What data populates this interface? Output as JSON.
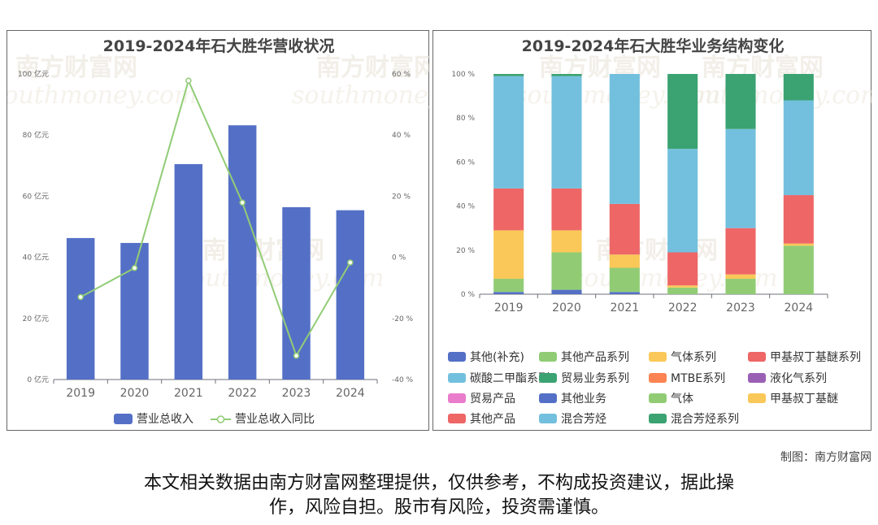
{
  "chart_data": [
    {
      "type": "bar+line",
      "title": "2019-2024年石大胜华营收状况",
      "categories": [
        "2019",
        "2020",
        "2021",
        "2022",
        "2023",
        "2024"
      ],
      "y_left_ticks": [
        "0 亿元",
        "20 亿元",
        "40 亿元",
        "60 亿元",
        "80 亿元",
        "100 亿元"
      ],
      "y_left_range": [
        0,
        100
      ],
      "y_right_ticks": [
        "-40 %",
        "-20 %",
        "0 %",
        "20 %",
        "40 %",
        "60 %"
      ],
      "y_right_range": [
        -40,
        60
      ],
      "series": [
        {
          "name": "营业总收入",
          "type": "bar",
          "axis": "left",
          "color": "#5470c6",
          "values": [
            46.3,
            44.7,
            70.5,
            83.2,
            56.4,
            55.4
          ]
        },
        {
          "name": "营业总收入同比",
          "type": "line",
          "axis": "right",
          "color": "#91cc75",
          "values": [
            -13,
            -3.5,
            57.8,
            17.9,
            -32.2,
            -1.7
          ]
        }
      ],
      "legend_position": "bottom",
      "grid": false
    },
    {
      "type": "stacked-bar-percent",
      "title": "2019-2024年石大胜华业务结构变化",
      "categories": [
        "2019",
        "2020",
        "2021",
        "2022",
        "2023",
        "2024"
      ],
      "y_ticks": [
        "0 %",
        "20 %",
        "40 %",
        "60 %",
        "80 %",
        "100 %"
      ],
      "y_range": [
        0,
        100
      ],
      "series": [
        {
          "name": "其他(补充)",
          "color": "#5470c6",
          "values": [
            1,
            2,
            1,
            0,
            0,
            0
          ]
        },
        {
          "name": "其他产品系列",
          "color": "#91cc75",
          "values": [
            0,
            17,
            0,
            0,
            0,
            0
          ]
        },
        {
          "name": "气体系列",
          "color": "#fac858",
          "values": [
            0,
            10,
            0,
            0,
            0,
            0
          ]
        },
        {
          "name": "甲基叔丁基醚系列",
          "color": "#ee6666",
          "values": [
            0,
            19,
            0,
            0,
            0,
            0
          ]
        },
        {
          "name": "碳酸二甲酯系列",
          "color": "#73c0de",
          "values": [
            0,
            51,
            0,
            0,
            0,
            0
          ]
        },
        {
          "name": "贸易业务系列",
          "color": "#3ba272",
          "values": [
            0,
            1,
            0,
            0,
            0,
            0
          ]
        },
        {
          "name": "MTBE系列",
          "color": "#fc8452",
          "values": [
            0,
            0,
            0,
            0,
            0,
            0
          ]
        },
        {
          "name": "液化气系列",
          "color": "#9a60b4",
          "values": [
            0,
            0,
            0,
            0,
            0,
            0
          ]
        },
        {
          "name": "贸易产品",
          "color": "#ea7ccc",
          "values": [
            0,
            0,
            0,
            0,
            0,
            0
          ]
        },
        {
          "name": "其他业务",
          "color": "#5470c6",
          "values": [
            0,
            0,
            0,
            0,
            0,
            0
          ]
        },
        {
          "name": "气体",
          "color": "#91cc75",
          "values": [
            6,
            0,
            11,
            3,
            7,
            22
          ]
        },
        {
          "name": "甲基叔丁基醚",
          "color": "#fac858",
          "values": [
            22,
            0,
            6,
            1,
            2,
            1
          ]
        },
        {
          "name": "其他产品",
          "color": "#ee6666",
          "values": [
            19,
            0,
            23,
            15,
            21,
            22
          ]
        },
        {
          "name": "混合芳烃",
          "color": "#73c0de",
          "values": [
            51,
            0,
            59,
            47,
            45,
            43
          ]
        },
        {
          "name": "混合芳烃系列",
          "color": "#3ba272",
          "values": [
            1,
            0,
            0,
            34,
            25,
            12
          ]
        }
      ],
      "legend_position": "bottom",
      "grid": false
    }
  ],
  "watermark": {
    "brand": "南方财富网",
    "url": "southmoney.com"
  },
  "footer": {
    "credit": "制图：南方财富网",
    "disclaimer_line1": "本文相关数据由南方财富网整理提供，仅供参考，不构成投资建议，据此操",
    "disclaimer_line2": "作，风险自担。股市有风险，投资需谨慎。"
  }
}
